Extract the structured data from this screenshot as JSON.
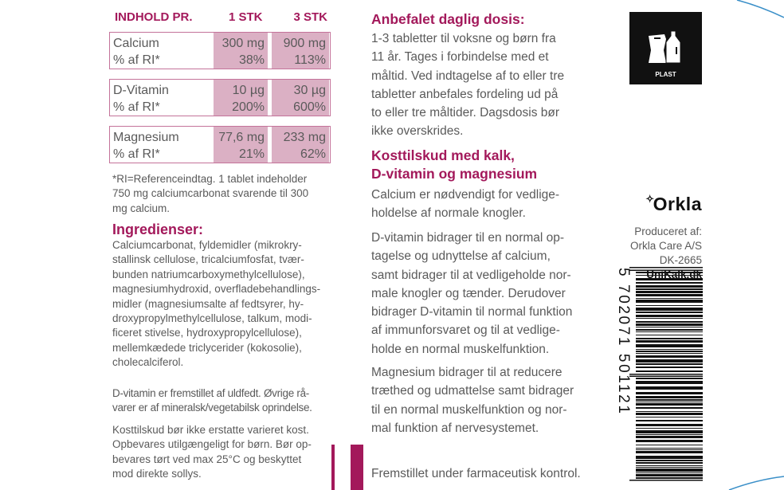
{
  "nutrition_table": {
    "header": {
      "label": "INDHOLD PR.",
      "col1": "1 STK",
      "col2": "3 STK"
    },
    "rows": [
      {
        "nutrient": "Calcium",
        "ri_label": "% af RI*",
        "amount_1": "300 mg",
        "amount_3": "900 mg",
        "ri_1": "38%",
        "ri_3": "113%"
      },
      {
        "nutrient": "D-Vitamin",
        "ri_label": "% af RI*",
        "amount_1": "10 µg",
        "amount_3": "30 µg",
        "ri_1": "200%",
        "ri_3": "600%"
      },
      {
        "nutrient": "Magnesium",
        "ri_label": "% af RI*",
        "amount_1": "77,6 mg",
        "amount_3": "233 mg",
        "ri_1": "21%",
        "ri_3": "62%"
      }
    ],
    "footnote": [
      "*RI=Referenceindtag. 1 tablet indeholder",
      "750 mg calciumcarbonat svarende til 300",
      "mg calcium."
    ]
  },
  "ingredients": {
    "heading": "Ingredienser:",
    "lines": [
      "Calciumcarbonat, fyldemidler (mikrokry-",
      "stallinsk cellulose, tricalciumfosfat, tvær-",
      "bunden natriumcarboxymethylcellulose),",
      "magnesiumhydroxid, overfladebehandlings-",
      "midler (magnesiumsalte af fedtsyrer, hy-",
      "droxypropylmethylcellulose, talkum, modi-",
      "ficeret stivelse, hydroxypropylcellulose),",
      "mellemkædede triclycerider (kokosolie),",
      "cholecalciferol."
    ],
    "origin": [
      "D-vitamin er fremstillet af uldfedt. Øvrige rå-",
      "varer er af mineralsk/vegetabilsk oprindelse."
    ],
    "storage": [
      "Kosttilskud bør ikke erstatte varieret kost.",
      "Opbevares utilgængeligt for børn. Bør op-",
      "bevares tørt ved max 25°C og beskyttet",
      "mod direkte sollys."
    ]
  },
  "dosage": {
    "heading": "Anbefalet daglig dosis:",
    "lines": [
      "1-3 tabletter til voksne og børn fra",
      "11 år. Tages i forbindelse med et",
      "måltid. Ved indtagelse af to eller tre",
      "tabletter anbefales fordeling ud på",
      "to eller tre måltider. Dagsdosis bør",
      "ikke overskrides."
    ]
  },
  "claims": {
    "heading": [
      "Kosttilskud med kalk,",
      "D-vitamin og magnesium"
    ],
    "calcium": [
      "Calcium er nødvendigt for vedlige-",
      "holdelse af normale knogler."
    ],
    "vitamin_d": [
      "D-vitamin bidrager til en normal op-",
      "tagelse og udnyttelse af calcium,",
      "samt bidrager til at vedligeholde nor-",
      "male knogler og tænder. Derudover",
      "bidrager D-vitamin til normal funktion",
      "af immunforsvaret og til at vedlige-",
      "holde en normal muskelfunktion."
    ],
    "magnesium": [
      "Magnesium bidrager til at reducere",
      "træthed og udmattelse samt bidrager",
      "til en normal muskelfunktion og nor-",
      "mal funktion af nervesystemet."
    ],
    "footer": "Fremstillet under farmaceutisk kontrol."
  },
  "recycling": {
    "icon": "plastic-recycling-icon",
    "label": "PLAST"
  },
  "producer": {
    "brand": "Orkla",
    "lines": [
      "Produceret af:",
      "Orkla Care A/S",
      "DK-2665"
    ],
    "website": "UniKalk.dk"
  },
  "barcode": {
    "digits": "5 702071 501121"
  },
  "colors": {
    "accent": "#a3195b",
    "table_fill": "#dbb0c4",
    "text": "#5a5a5a",
    "edge_line": "#3a8fc8"
  }
}
